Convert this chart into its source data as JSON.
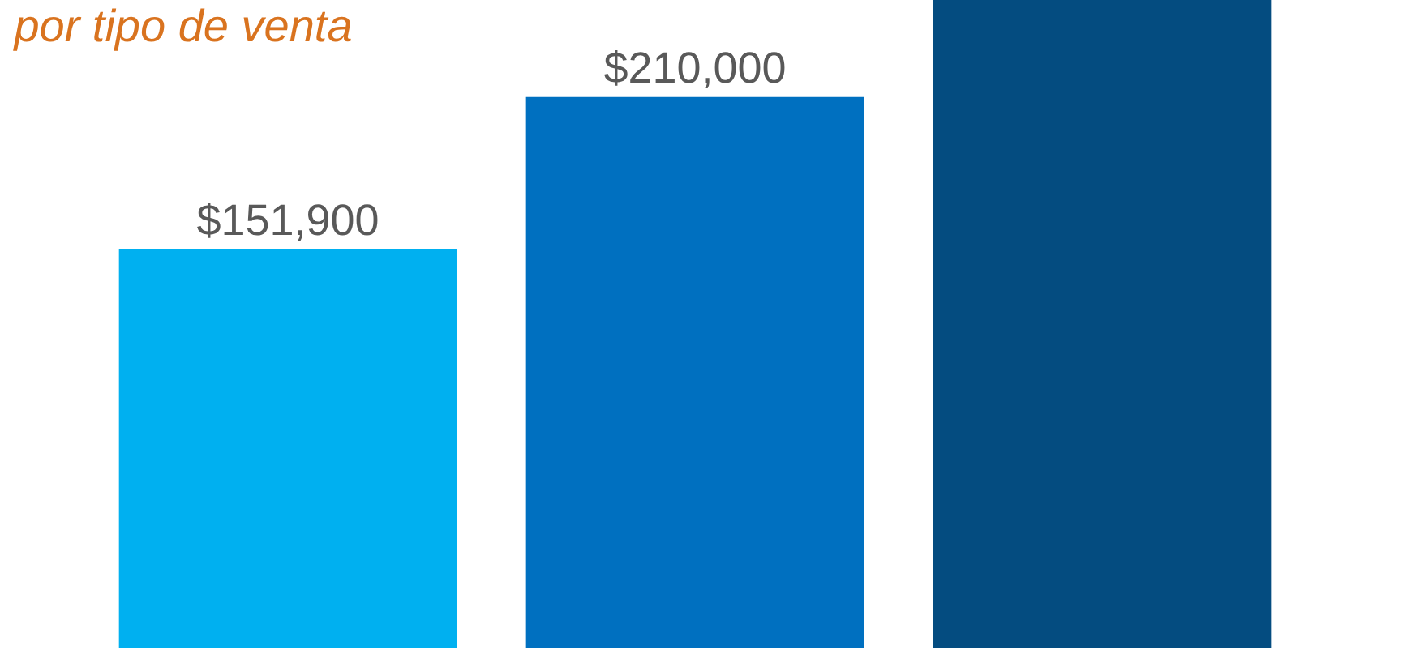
{
  "chart_data": {
    "type": "bar",
    "title": "por tipo de venta",
    "categories": [
      null,
      null,
      null
    ],
    "values": [
      151900,
      210000,
      247000
    ],
    "colors": [
      "#00b0f0",
      "#0070c0",
      "#044c80"
    ],
    "value_labels": [
      "$151,900",
      "$210,000",
      null
    ],
    "ylim": [
      0,
      247000
    ],
    "grid": false
  }
}
